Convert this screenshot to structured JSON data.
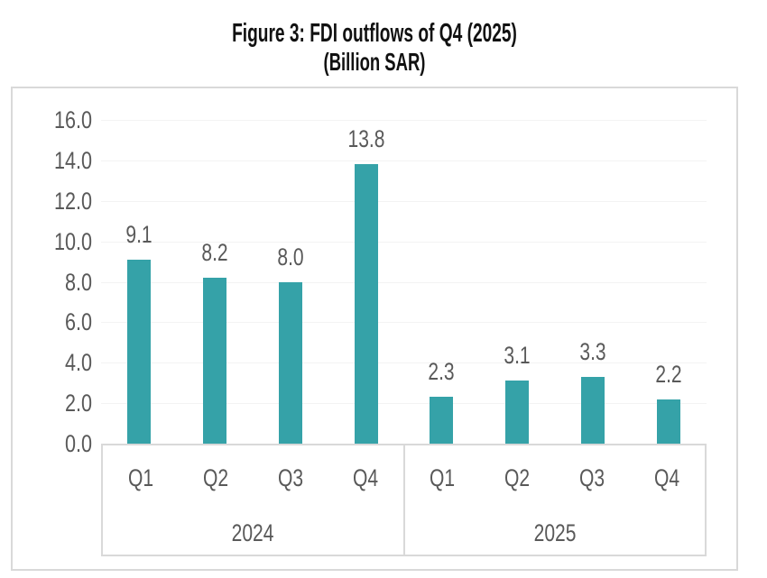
{
  "title": {
    "line1": "Figure 3: FDI outflows of Q4 (2025)",
    "line2": "(Billion SAR)"
  },
  "chart_data": {
    "type": "bar",
    "title": "Figure 3: FDI outflows of Q4 (2025)",
    "subtitle": "(Billion SAR)",
    "unit": "Billion SAR",
    "categories": [
      "Q1 2024",
      "Q2 2024",
      "Q3 2024",
      "Q4 2024",
      "Q1 2025",
      "Q2 2025",
      "Q3 2025",
      "Q4 2025"
    ],
    "groups": [
      {
        "year": "2024",
        "quarters": [
          "Q1",
          "Q2",
          "Q3",
          "Q4"
        ],
        "values": [
          9.1,
          8.2,
          8.0,
          13.8
        ],
        "labels": [
          "9.1",
          "8.2",
          "8.0",
          "13.8"
        ]
      },
      {
        "year": "2025",
        "quarters": [
          "Q1",
          "Q2",
          "Q3",
          "Q4"
        ],
        "values": [
          2.3,
          3.1,
          3.3,
          2.2
        ],
        "labels": [
          "2.3",
          "3.1",
          "3.3",
          "2.2"
        ]
      }
    ],
    "y_axis": {
      "min": 0,
      "max": 16,
      "step": 2,
      "tick_labels": [
        "0.0",
        "2.0",
        "4.0",
        "6.0",
        "8.0",
        "10.0",
        "12.0",
        "14.0",
        "16.0"
      ]
    },
    "bar_color": "#35A2A8",
    "grid": "faint-horizontal",
    "legend_position": "none",
    "data_labels_shown": true
  },
  "colors": {
    "bar": "#35A2A8",
    "frame_border": "#D9D9D9",
    "axis_text": "#595959",
    "value_label_text": "#595959",
    "title_text": "#111111",
    "gridline": "#F3F3F3"
  }
}
